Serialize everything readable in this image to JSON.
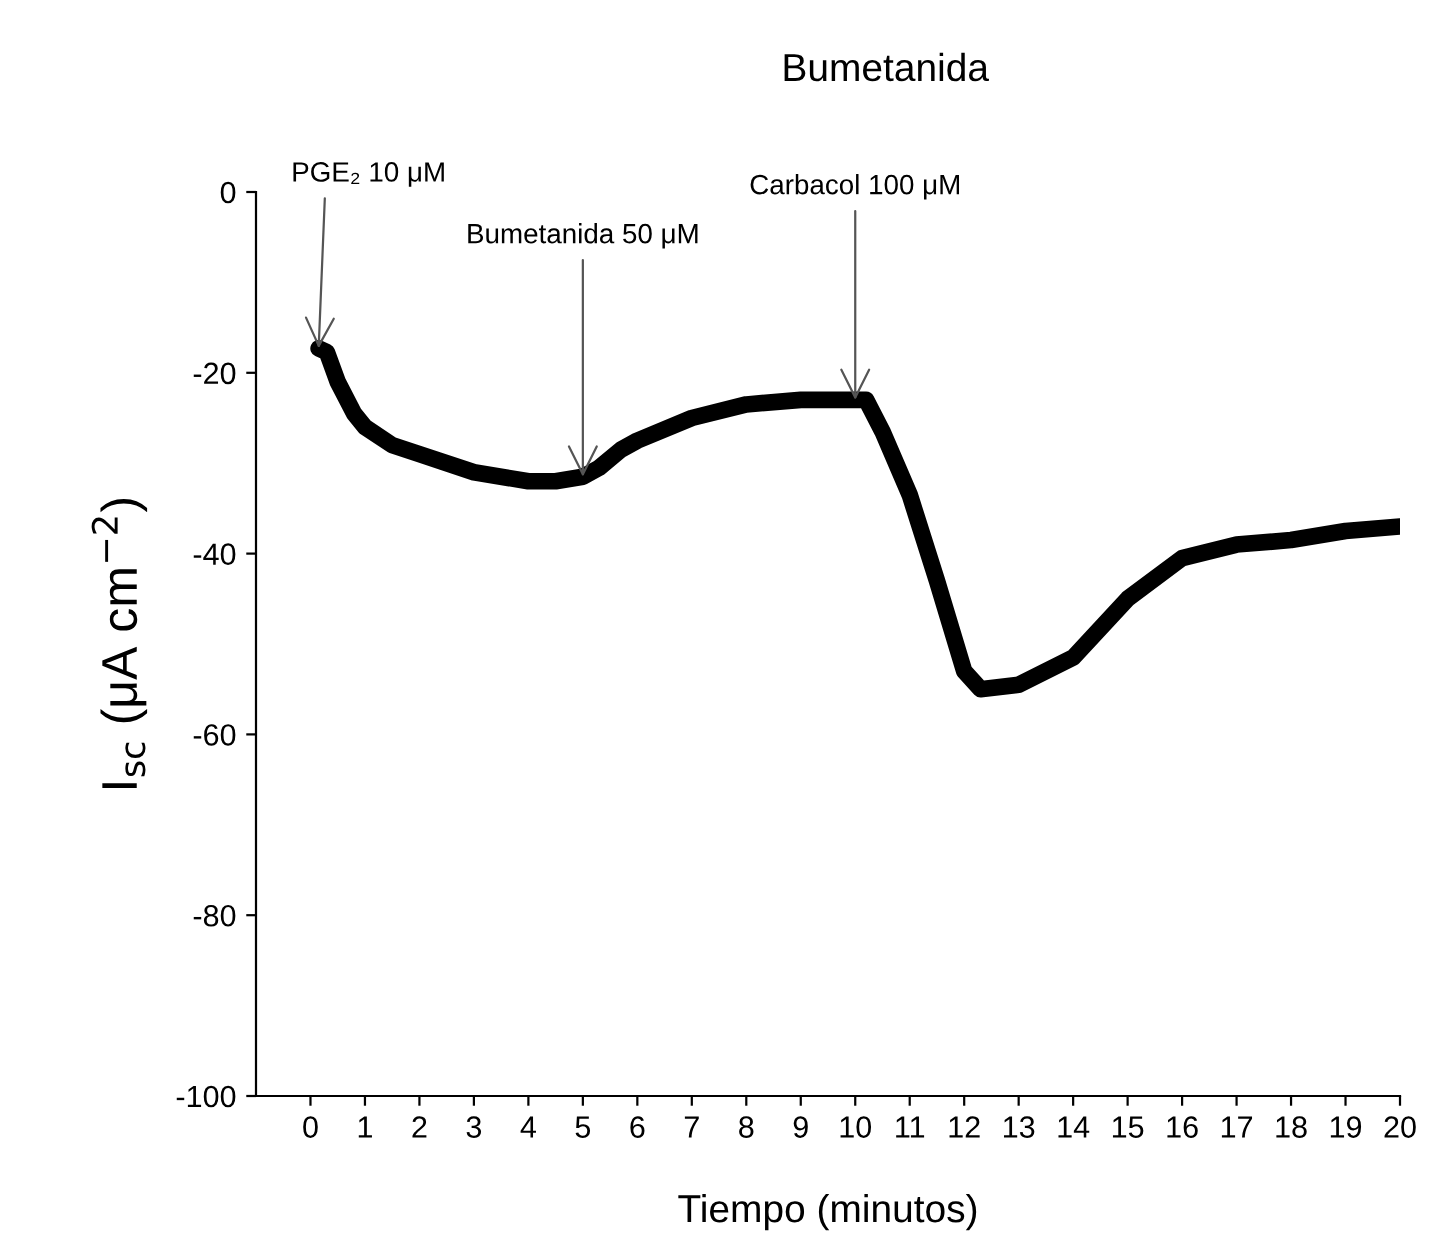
{
  "chart_data": {
    "type": "line",
    "title": "Bumetanida",
    "xlabel": "Tiempo (minutos)",
    "ylabel": "I$_{sc}$ (μA cm$^{−2}$)",
    "x": [
      0.15,
      0.3,
      0.5,
      0.8,
      1,
      1.5,
      2,
      3,
      4,
      4.5,
      5,
      5.3,
      5.7,
      6,
      7,
      8,
      9,
      10,
      10.2,
      10.5,
      11,
      11.5,
      12,
      12.3,
      13,
      14,
      15,
      16,
      17,
      18,
      19,
      20
    ],
    "series": [
      {
        "color": "#000000",
        "values": [
          -17.3,
          -17.7,
          -21,
          -24.5,
          -26,
          -28,
          -29,
          -31,
          -32,
          -32,
          -31.5,
          -30.5,
          -28.5,
          -27.5,
          -25,
          -23.5,
          -23,
          -23,
          -23,
          -26.5,
          -33.5,
          -43,
          -53,
          -55,
          -54.5,
          -51.5,
          -45,
          -40.5,
          -39,
          -38.5,
          -37.5,
          -37
        ]
      }
    ],
    "annotations": [
      {
        "text": "PGE₂ 10 μM",
        "x": 0.15,
        "y": -17.3
      },
      {
        "text": "Bumetanida 50 μM",
        "x": 5,
        "y": -31.5
      },
      {
        "text": "Carbacol 100 μM",
        "x": 10,
        "y": -23
      }
    ],
    "xlim": [
      -1,
      20
    ],
    "xticks": [
      0,
      1,
      2,
      3,
      4,
      5,
      6,
      7,
      8,
      9,
      10,
      11,
      12,
      13,
      14,
      15,
      16,
      17,
      18,
      19,
      20
    ],
    "ylim": [
      -100,
      0
    ],
    "yticks": [
      -100,
      -80,
      -60,
      -40,
      -20,
      0
    ],
    "grid": false,
    "legend": false,
    "marker": "none",
    "line_style": "solid"
  }
}
